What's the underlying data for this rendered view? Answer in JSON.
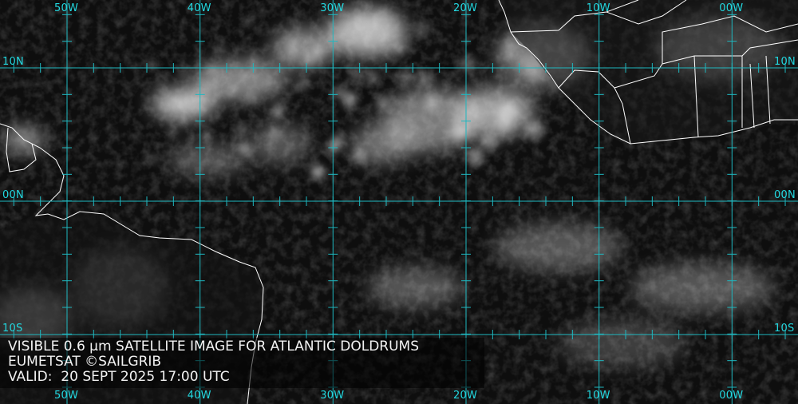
{
  "caption": {
    "line1": "VISIBLE 0.6 µm SATELLITE IMAGE FOR ATLANTIC DOLDRUMS",
    "line2": "EUMETSAT ©SAILGRIB",
    "line3": "VALID:  20 SEPT 2025 17:00 UTC"
  },
  "longitudes": [
    "50W",
    "40W",
    "30W",
    "20W",
    "10W",
    "00W"
  ],
  "latitudes": [
    "10N",
    "00N",
    "10S"
  ],
  "colors": {
    "grid": "#1fb8c0",
    "label": "#22d8e0",
    "coastline": "#ffffff",
    "caption_text": "#f2f2f2"
  }
}
